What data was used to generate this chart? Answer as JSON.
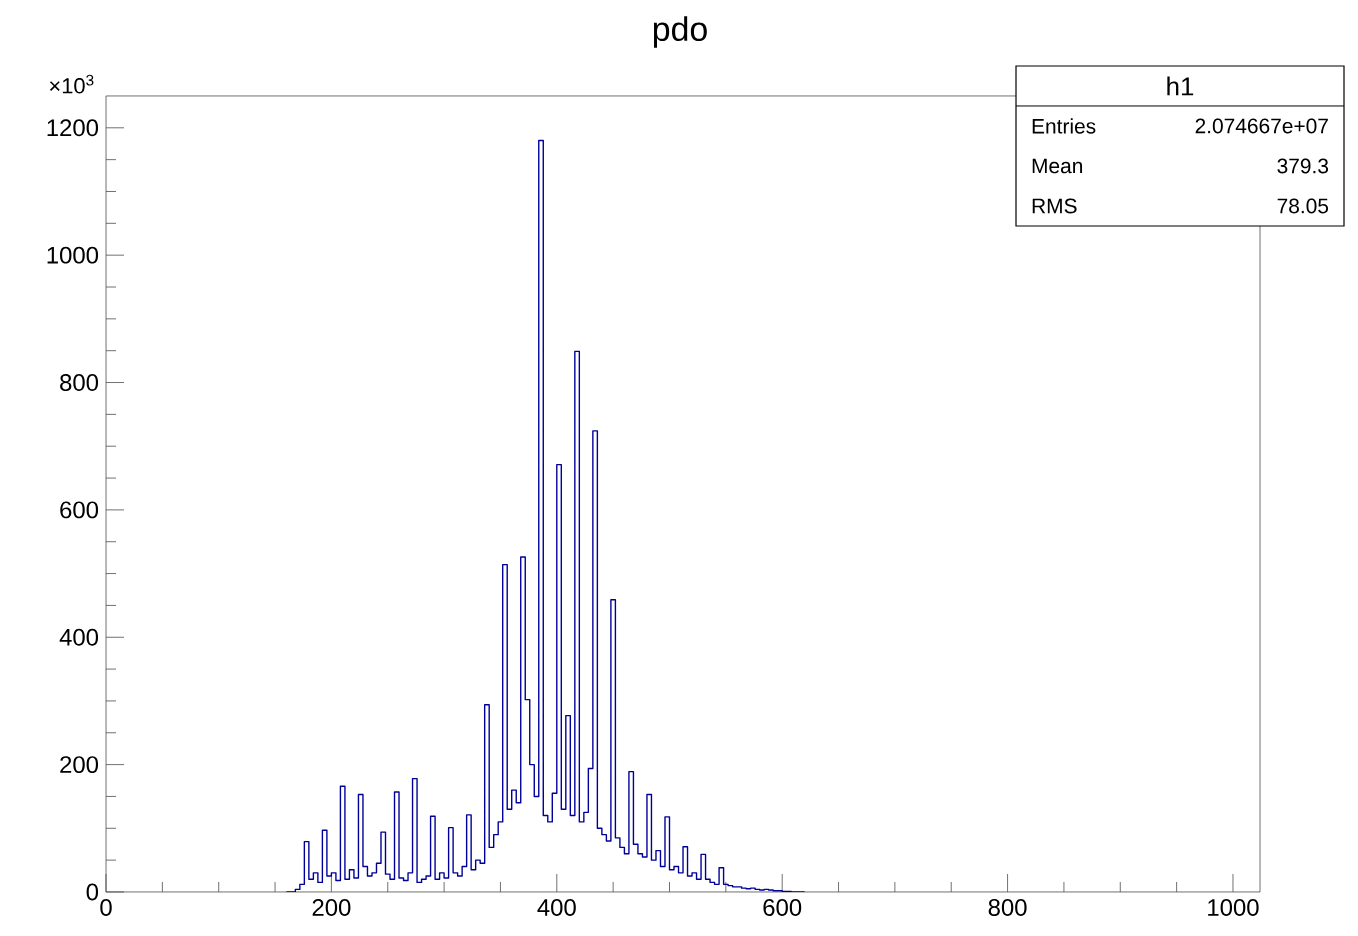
{
  "chart_data": {
    "type": "histogram",
    "title": "pdo",
    "color": "#000099",
    "annotations": [
      "×10$^{3}$",
      "h1",
      "Entries",
      "2.074667e+07",
      "Mean",
      "379.3",
      "RMS",
      "78.05"
    ],
    "bins": [
      160,
      164,
      168,
      172,
      176,
      180,
      184,
      188,
      192,
      196,
      200,
      204,
      208,
      212,
      216,
      220,
      224,
      228,
      232,
      236,
      240,
      244,
      248,
      252,
      256,
      260,
      264,
      268,
      272,
      276,
      280,
      284,
      288,
      292,
      296,
      300,
      304,
      308,
      312,
      316,
      320,
      324,
      328,
      332,
      336,
      340,
      344,
      348,
      352,
      356,
      360,
      364,
      368,
      372,
      376,
      380,
      384,
      388,
      392,
      396,
      400,
      404,
      408,
      412,
      416,
      420,
      424,
      428,
      432,
      436,
      440,
      444,
      448,
      452,
      456,
      460,
      464,
      468,
      472,
      476,
      480,
      484,
      488,
      492,
      496,
      500,
      504,
      508,
      512,
      516,
      520,
      524,
      528,
      532,
      536,
      540,
      544,
      548,
      552,
      556,
      560,
      564,
      568,
      572,
      576,
      580,
      584,
      588,
      592,
      596,
      600,
      604,
      608,
      612,
      616,
      620
    ],
    "values": [
      0,
      0,
      4,
      12,
      79,
      20,
      30,
      15,
      97,
      25,
      30,
      18,
      166,
      20,
      35,
      22,
      153,
      40,
      25,
      30,
      45,
      94,
      28,
      20,
      157,
      22,
      18,
      30,
      178,
      15,
      20,
      25,
      119,
      20,
      30,
      22,
      101,
      30,
      25,
      40,
      121,
      35,
      50,
      45,
      294,
      70,
      90,
      110,
      514,
      130,
      160,
      140,
      526,
      302,
      200,
      150,
      1180,
      120,
      110,
      155,
      671,
      130,
      277,
      120,
      849,
      110,
      125,
      194,
      724,
      100,
      90,
      80,
      459,
      85,
      70,
      60,
      189,
      75,
      60,
      55,
      153,
      50,
      65,
      40,
      118,
      35,
      40,
      30,
      71,
      25,
      30,
      20,
      59,
      20,
      15,
      12,
      38,
      12,
      10,
      8,
      8,
      6,
      5,
      6,
      4,
      3,
      4,
      3,
      2,
      2,
      1,
      1,
      0,
      0,
      0
    ],
    "xlim": [
      0,
      1024
    ],
    "ylim": [
      0,
      1250
    ],
    "xticks": [
      0,
      200,
      400,
      600,
      800,
      1000
    ],
    "yticks": [
      0,
      200,
      400,
      600,
      800,
      1000,
      1200
    ],
    "grid": false
  }
}
